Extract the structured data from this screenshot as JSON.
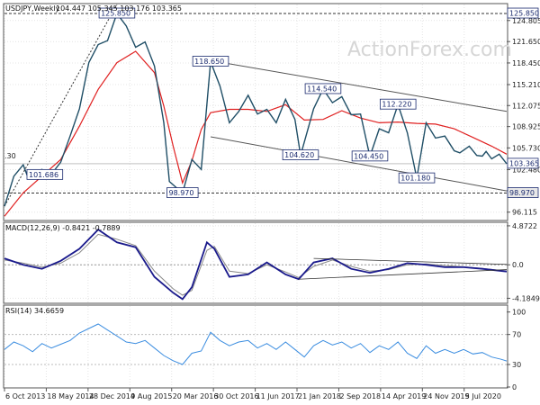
{
  "chart_data": {
    "type": "line",
    "symbol_header": "USDJPY,Weekly",
    "ohlc_header": "104.447 105.345 103.176 103.365",
    "watermark": "ActionForex.com",
    "x_tick_labels": [
      "6 Oct 2013",
      "18 May 2014",
      "28 Dec 2014",
      "9 Aug 2015",
      "20 Mar 2016",
      "30 Oct 2016",
      "11 Jun 2017",
      "21 Jan 2018",
      "2 Sep 2018",
      "14 Apr 2019",
      "24 Nov 2019",
      "5 Jul 2020"
    ],
    "main_panel": {
      "ylim": [
        95.0,
        127.2
      ],
      "y_ticks": [
        "124.805",
        "121.650",
        "118.450",
        "115.210",
        "112.075",
        "108.925",
        "105.730",
        "102.480",
        "99.330",
        "96.115"
      ],
      "price_series": {
        "x": [
          0,
          5,
          10,
          12,
          20,
          25,
          30,
          35,
          40,
          45,
          50,
          55,
          60,
          65,
          70,
          75,
          80,
          85,
          88,
          95,
          100,
          105,
          110,
          115,
          120,
          125,
          130,
          135,
          140,
          145,
          150,
          155,
          158,
          165,
          170,
          175,
          180,
          185,
          190,
          195,
          200,
          205,
          210,
          215,
          220,
          225,
          230,
          235,
          240,
          243,
          248,
          252,
          255,
          257,
          260,
          264,
          268
        ],
        "values": [
          97,
          101.5,
          103.2,
          101.7,
          102.5,
          101.8,
          103.6,
          107.5,
          111.6,
          118.5,
          121.2,
          121.8,
          125.85,
          124,
          120.8,
          121.6,
          118,
          109.5,
          100.7,
          98.97,
          104,
          102.5,
          118.65,
          115,
          109.5,
          111.2,
          113.6,
          110.8,
          111.5,
          109.5,
          113,
          110,
          104.62,
          111.6,
          114.54,
          112.5,
          113.4,
          110.7,
          110.8,
          104.45,
          108.6,
          108,
          112.22,
          108,
          101.18,
          109.5,
          107.2,
          107.5,
          105.3,
          105,
          106,
          104.6,
          104.5,
          105.2,
          104.1,
          104.8,
          103.365
        ]
      },
      "ma_series": {
        "name": "",
        "x": [
          0,
          10,
          20,
          30,
          40,
          50,
          60,
          70,
          80,
          85,
          90,
          95,
          100,
          105,
          110,
          120,
          130,
          140,
          150,
          160,
          170,
          180,
          190,
          200,
          210,
          220,
          230,
          240,
          250,
          260,
          268
        ],
        "values": [
          95.5,
          99,
          101.5,
          104,
          109,
          114.5,
          118.5,
          120.2,
          117,
          112,
          106,
          100.5,
          103.8,
          108.5,
          111,
          111.5,
          111.5,
          111.2,
          112.2,
          109.9,
          110,
          111.3,
          110.2,
          109.5,
          109.6,
          109.4,
          109.3,
          108.6,
          107.3,
          106,
          104.8
        ]
      },
      "channel_upper": {
        "from": [
          110,
          118.8
        ],
        "to": [
          268,
          111.2
        ]
      },
      "channel_lower": {
        "from": [
          110,
          107.4
        ],
        "to": [
          268,
          99.3
        ]
      },
      "support_line_y": 98.97,
      "dotted_trendline": {
        "from": [
          0,
          97
        ],
        "to": [
          60,
          127.2
        ]
      },
      "levels": [
        {
          "label": "125.850",
          "x": 60,
          "y": 125.85,
          "side": "left"
        },
        {
          "label": "118.650",
          "x": 110,
          "y": 118.65,
          "side": "left"
        },
        {
          "label": "114.540",
          "x": 170,
          "y": 114.54,
          "side": "left"
        },
        {
          "label": "112.220",
          "x": 210,
          "y": 112.22,
          "side": "left"
        },
        {
          "label": "104.620",
          "x": 158,
          "y": 104.62,
          "side": "left"
        },
        {
          "label": "104.450",
          "x": 195,
          "y": 104.45,
          "side": "left"
        },
        {
          "label": "101.686",
          "x": 12,
          "y": 101.686,
          "side": "right"
        },
        {
          "label": "101.180",
          "x": 220,
          "y": 101.18,
          "side": "left"
        },
        {
          "label": "98.970",
          "x": 95,
          "y": 98.97,
          "side": "left"
        }
      ],
      "edge_label": ".30",
      "right_badges": [
        {
          "label": "125.850",
          "y": 125.85,
          "style": "outlined"
        },
        {
          "label": "103.365",
          "y": 103.365,
          "style": "outlined"
        },
        {
          "label": "98.970",
          "y": 98.97,
          "style": "filled"
        }
      ]
    },
    "macd_panel": {
      "header": "MACD(12,26,9) -0.8421 -0.7889",
      "ylim": [
        -4.7,
        5.2
      ],
      "y_ticks": [
        "4.8722",
        "0.0",
        "-4.1849"
      ],
      "macd_series": {
        "x": [
          0,
          10,
          20,
          30,
          40,
          50,
          60,
          70,
          80,
          90,
          95,
          100,
          108,
          112,
          120,
          130,
          140,
          150,
          157,
          165,
          175,
          185,
          195,
          205,
          215,
          225,
          235,
          245,
          255,
          268
        ],
        "values": [
          0.8,
          0,
          -0.5,
          0.5,
          2,
          4.4,
          2.8,
          2.2,
          -1.5,
          -3.5,
          -4.3,
          -2.8,
          2.8,
          2,
          -1.5,
          -1.2,
          0.3,
          -1.2,
          -1.8,
          0.3,
          0.8,
          -0.5,
          -1,
          -0.5,
          0.2,
          0,
          -0.3,
          -0.3,
          -0.5,
          -0.84
        ]
      },
      "signal_series": {
        "x": [
          0,
          10,
          20,
          30,
          40,
          50,
          60,
          70,
          80,
          90,
          95,
          100,
          108,
          112,
          120,
          130,
          140,
          150,
          157,
          165,
          175,
          185,
          195,
          205,
          215,
          225,
          235,
          245,
          255,
          268
        ],
        "values": [
          0.6,
          0.2,
          -0.3,
          0.2,
          1.5,
          3.8,
          3.2,
          2.4,
          -0.8,
          -3,
          -3.8,
          -3.2,
          1.8,
          2.3,
          -0.8,
          -1.1,
          0,
          -0.9,
          -1.6,
          -0.2,
          0.6,
          -0.2,
          -0.8,
          -0.6,
          0,
          0.1,
          -0.1,
          -0.25,
          -0.45,
          -0.79
        ]
      },
      "triangle_upper": {
        "from": [
          165,
          0.8
        ],
        "to": [
          268,
          0.05
        ]
      },
      "triangle_lower": {
        "from": [
          157,
          -1.8
        ],
        "to": [
          268,
          -0.6
        ]
      }
    },
    "rsi_panel": {
      "header": "RSI(14) 34.6659",
      "ylim": [
        0,
        108
      ],
      "y_ticks": [
        "100",
        "70",
        "30",
        "0"
      ],
      "rsi_series": {
        "x": [
          0,
          5,
          10,
          15,
          20,
          25,
          30,
          35,
          40,
          45,
          50,
          55,
          60,
          65,
          70,
          75,
          80,
          85,
          90,
          95,
          100,
          105,
          110,
          115,
          120,
          125,
          130,
          135,
          140,
          145,
          150,
          155,
          160,
          165,
          170,
          175,
          180,
          185,
          190,
          195,
          200,
          205,
          210,
          215,
          220,
          225,
          230,
          235,
          240,
          245,
          250,
          255,
          260,
          265,
          268
        ],
        "values": [
          50,
          60,
          55,
          47,
          58,
          52,
          57,
          62,
          72,
          78,
          84,
          76,
          68,
          60,
          58,
          62,
          52,
          42,
          35,
          30,
          45,
          48,
          73,
          62,
          55,
          60,
          62,
          52,
          58,
          50,
          60,
          50,
          40,
          55,
          62,
          56,
          60,
          52,
          58,
          46,
          55,
          50,
          60,
          45,
          38,
          55,
          45,
          50,
          45,
          50,
          44,
          46,
          40,
          37,
          34.67
        ]
      },
      "level_lines": [
        70,
        30
      ]
    }
  }
}
